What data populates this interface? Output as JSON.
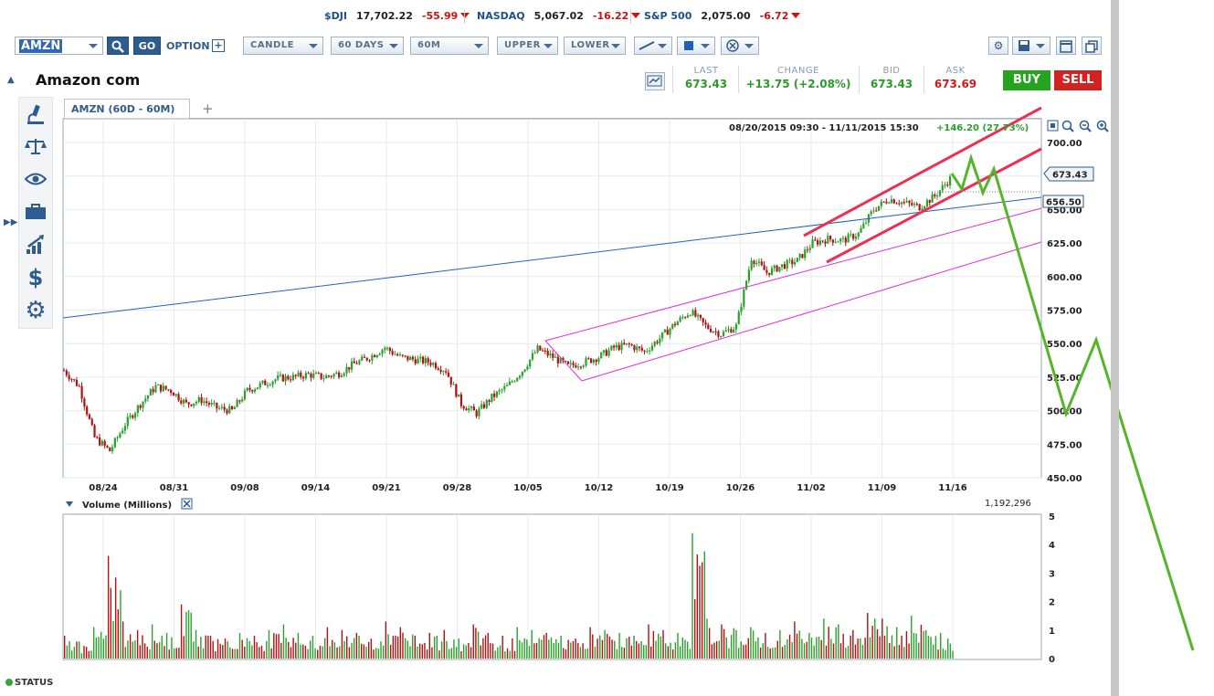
{
  "tickers": [
    {
      "symbol": "$DJI",
      "value": "17,702.22",
      "change": "-55.99"
    },
    {
      "symbol": "NASDAQ",
      "value": "5,067.02",
      "change": "-16.22"
    },
    {
      "symbol": "S&P 500",
      "value": "2,075.00",
      "change": "-6.72"
    }
  ],
  "toolbar": {
    "symbol": "AMZN",
    "go_label": "GO",
    "option_label": "OPTION",
    "chart_type": "CANDLE",
    "range": "60 DAYS",
    "interval": "60M",
    "upper": "UPPER",
    "lower": "LOWER"
  },
  "company": "Amazon com",
  "quote": {
    "last_label": "LAST",
    "last": "673.43",
    "change_label": "CHANGE",
    "change": "+13.75 (+2.08%)",
    "bid_label": "BID",
    "bid": "673.43",
    "ask_label": "ASK",
    "ask": "673.69"
  },
  "buttons": {
    "buy": "BUY",
    "sell": "SELL"
  },
  "tab": {
    "label": "AMZN (60D - 60M)",
    "add": "+"
  },
  "status": "STATUS",
  "colors": {
    "up": "#2aa22a",
    "down": "#b01111",
    "trendline_blue": "#2161c4",
    "channel_magenta": "#e02ee0",
    "channel_red": "#ef2f52",
    "projection": "#55b52a"
  },
  "chart_data": [
    {
      "type": "candlestick",
      "date_range": "08/20/2015 09:30 - 11/11/2015 15:30",
      "period_change": "+146.20 (27.73%)",
      "x_tick_labels": [
        "08/24",
        "08/31",
        "09/08",
        "09/14",
        "09/21",
        "09/28",
        "10/05",
        "10/12",
        "10/19",
        "10/26",
        "11/02",
        "11/09",
        "11/16"
      ],
      "y_tick_labels": [
        "700.00",
        "675.00",
        "650.00",
        "625.00",
        "600.00",
        "575.00",
        "550.00",
        "525.00",
        "500.00",
        "475.00",
        "450.00"
      ],
      "ylim": [
        450,
        700
      ],
      "last_price_label": "673.43",
      "reference_price_label": "656.50",
      "price_path": [
        {
          "date": "08/20",
          "price": 530
        },
        {
          "date": "08/21",
          "price": 518
        },
        {
          "date": "08/24",
          "price": 480
        },
        {
          "date": "08/25",
          "price": 470
        },
        {
          "date": "08/26",
          "price": 490
        },
        {
          "date": "08/27",
          "price": 505
        },
        {
          "date": "08/28",
          "price": 518
        },
        {
          "date": "08/31",
          "price": 515
        },
        {
          "date": "09/01",
          "price": 505
        },
        {
          "date": "09/02",
          "price": 508
        },
        {
          "date": "09/03",
          "price": 502
        },
        {
          "date": "09/04",
          "price": 500
        },
        {
          "date": "09/08",
          "price": 515
        },
        {
          "date": "09/09",
          "price": 520
        },
        {
          "date": "09/10",
          "price": 524
        },
        {
          "date": "09/11",
          "price": 525
        },
        {
          "date": "09/14",
          "price": 527
        },
        {
          "date": "09/15",
          "price": 525
        },
        {
          "date": "09/16",
          "price": 528
        },
        {
          "date": "09/17",
          "price": 535
        },
        {
          "date": "09/18",
          "price": 540
        },
        {
          "date": "09/21",
          "price": 547
        },
        {
          "date": "09/22",
          "price": 540
        },
        {
          "date": "09/23",
          "price": 538
        },
        {
          "date": "09/24",
          "price": 536
        },
        {
          "date": "09/25",
          "price": 530
        },
        {
          "date": "09/28",
          "price": 505
        },
        {
          "date": "09/29",
          "price": 498
        },
        {
          "date": "09/30",
          "price": 510
        },
        {
          "date": "10/01",
          "price": 518
        },
        {
          "date": "10/02",
          "price": 530
        },
        {
          "date": "10/05",
          "price": 546
        },
        {
          "date": "10/06",
          "price": 540
        },
        {
          "date": "10/07",
          "price": 533
        },
        {
          "date": "10/08",
          "price": 536
        },
        {
          "date": "10/09",
          "price": 540
        },
        {
          "date": "10/12",
          "price": 547
        },
        {
          "date": "10/13",
          "price": 549
        },
        {
          "date": "10/14",
          "price": 544
        },
        {
          "date": "10/15",
          "price": 554
        },
        {
          "date": "10/16",
          "price": 565
        },
        {
          "date": "10/19",
          "price": 574
        },
        {
          "date": "10/20",
          "price": 563
        },
        {
          "date": "10/21",
          "price": 557
        },
        {
          "date": "10/22",
          "price": 563
        },
        {
          "date": "10/23",
          "price": 614
        },
        {
          "date": "10/26",
          "price": 603
        },
        {
          "date": "10/27",
          "price": 608
        },
        {
          "date": "10/28",
          "price": 612
        },
        {
          "date": "10/29",
          "price": 625
        },
        {
          "date": "10/30",
          "price": 628
        },
        {
          "date": "11/02",
          "price": 627
        },
        {
          "date": "11/03",
          "price": 632
        },
        {
          "date": "11/04",
          "price": 650
        },
        {
          "date": "11/05",
          "price": 658
        },
        {
          "date": "11/06",
          "price": 655
        },
        {
          "date": "11/09",
          "price": 652
        },
        {
          "date": "11/10",
          "price": 660
        },
        {
          "date": "11/11",
          "price": 673
        }
      ]
    },
    {
      "type": "bar",
      "title": "Volume (Millions)",
      "latest_volume_label": "1,192,296",
      "y_tick_labels": [
        "5",
        "4",
        "3",
        "2",
        "1",
        "0"
      ],
      "ylim": [
        0,
        5
      ],
      "values": [
        0.8,
        0.6,
        1.1,
        3.6,
        1.3,
        1.0,
        1.2,
        0.9,
        1.9,
        1.0,
        0.8,
        0.7,
        0.9,
        0.8,
        1.0,
        1.2,
        0.9,
        0.8,
        1.1,
        1.0,
        0.9,
        0.7,
        1.3,
        1.1,
        0.8,
        0.9,
        1.0,
        0.7,
        1.2,
        0.9,
        0.8,
        1.1,
        1.0,
        0.9,
        0.8,
        0.7,
        1.1,
        1.0,
        0.9,
        0.8,
        1.2,
        1.0,
        0.9,
        4.4,
        1.4,
        1.2,
        1.0,
        1.1,
        0.9,
        1.0,
        1.3,
        0.9,
        1.4,
        1.2,
        1.0,
        1.6,
        1.4,
        1.1,
        1.5,
        1.0,
        0.9
      ]
    }
  ]
}
